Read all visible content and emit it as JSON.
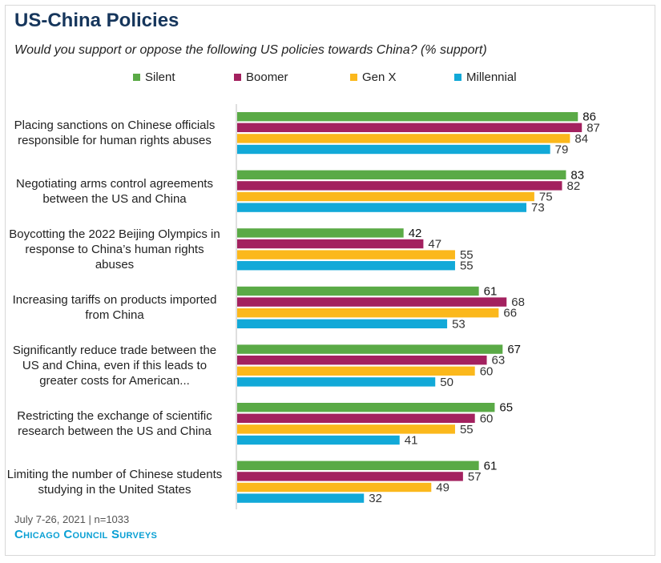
{
  "header": {
    "title": "US-China Policies",
    "subtitle": "Would you support or oppose the following US policies towards China? (% support)"
  },
  "footer": {
    "note": "July 7-26, 2021 | n=1033",
    "brand": "Chicago Council Surveys"
  },
  "chart_data": {
    "type": "bar",
    "orientation": "horizontal",
    "categories": [
      "Placing sanctions on Chinese officials responsible for human rights abuses",
      "Negotiating arms control agreements between the US and China",
      "Boycotting the 2022 Beijing Olympics in response to China’s human rights abuses",
      "Increasing tariffs on products imported from China",
      "Significantly reduce trade between the US and China, even if this leads to greater costs for American...",
      "Restricting the exchange of scientific research between the US and China",
      "Limiting the number of Chinese students studying in the United States"
    ],
    "series": [
      {
        "name": "Silent",
        "color": "#5aaa46",
        "values": [
          86,
          83,
          42,
          61,
          67,
          65,
          61
        ]
      },
      {
        "name": "Boomer",
        "color": "#a3215f",
        "values": [
          87,
          82,
          47,
          68,
          63,
          60,
          57
        ]
      },
      {
        "name": "Gen X",
        "color": "#fbb81c",
        "values": [
          84,
          75,
          55,
          66,
          60,
          55,
          49
        ]
      },
      {
        "name": "Millennial",
        "color": "#12a9d8",
        "values": [
          79,
          73,
          55,
          53,
          50,
          41,
          32
        ]
      }
    ],
    "xlim": [
      0,
      100
    ],
    "legend_position": "top",
    "grid": false
  }
}
